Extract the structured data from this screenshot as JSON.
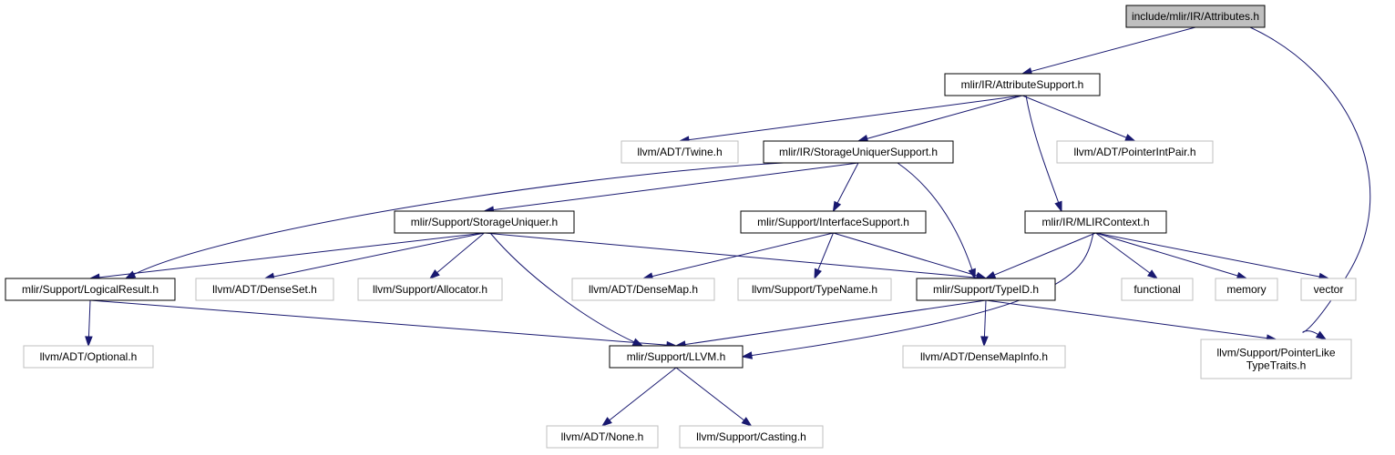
{
  "colors": {
    "edge": "#191970",
    "root_fill": "#bfbfbf",
    "internal_border": "#000000",
    "external_border": "#bfbfbf"
  },
  "nodes": {
    "attributes": {
      "label": "include/mlir/IR/Attributes.h",
      "kind": "root"
    },
    "attribute_support": {
      "label": "mlir/IR/AttributeSupport.h",
      "kind": "internal"
    },
    "twine": {
      "label": "llvm/ADT/Twine.h",
      "kind": "external"
    },
    "storage_uniquer_support": {
      "label": "mlir/IR/StorageUniquerSupport.h",
      "kind": "internal"
    },
    "pointer_int_pair": {
      "label": "llvm/ADT/PointerIntPair.h",
      "kind": "external"
    },
    "storage_uniquer": {
      "label": "mlir/Support/StorageUniquer.h",
      "kind": "internal"
    },
    "interface_support": {
      "label": "mlir/Support/InterfaceSupport.h",
      "kind": "internal"
    },
    "mlir_context": {
      "label": "mlir/IR/MLIRContext.h",
      "kind": "internal"
    },
    "logical_result": {
      "label": "mlir/Support/LogicalResult.h",
      "kind": "internal"
    },
    "dense_set": {
      "label": "llvm/ADT/DenseSet.h",
      "kind": "external"
    },
    "allocator": {
      "label": "llvm/Support/Allocator.h",
      "kind": "external"
    },
    "dense_map": {
      "label": "llvm/ADT/DenseMap.h",
      "kind": "external"
    },
    "type_name": {
      "label": "llvm/Support/TypeName.h",
      "kind": "external"
    },
    "type_id": {
      "label": "mlir/Support/TypeID.h",
      "kind": "internal"
    },
    "functional": {
      "label": "functional",
      "kind": "external"
    },
    "memory": {
      "label": "memory",
      "kind": "external"
    },
    "vector": {
      "label": "vector",
      "kind": "external"
    },
    "optional": {
      "label": "llvm/ADT/Optional.h",
      "kind": "external"
    },
    "llvm_h": {
      "label": "mlir/Support/LLVM.h",
      "kind": "internal"
    },
    "dense_map_info": {
      "label": "llvm/ADT/DenseMapInfo.h",
      "kind": "external"
    },
    "pointer_like_type_traits": {
      "label": "llvm/Support/PointerLike\nTypeTraits.h",
      "label_lines": [
        "llvm/Support/PointerLike",
        "TypeTraits.h"
      ],
      "kind": "external"
    },
    "none": {
      "label": "llvm/ADT/None.h",
      "kind": "external"
    },
    "casting": {
      "label": "llvm/Support/Casting.h",
      "kind": "external"
    }
  },
  "edges": [
    {
      "from": "attributes",
      "to": "attribute_support"
    },
    {
      "from": "attributes",
      "to": "pointer_like_type_traits"
    },
    {
      "from": "attribute_support",
      "to": "twine"
    },
    {
      "from": "attribute_support",
      "to": "storage_uniquer_support"
    },
    {
      "from": "attribute_support",
      "to": "pointer_int_pair"
    },
    {
      "from": "attribute_support",
      "to": "mlir_context"
    },
    {
      "from": "storage_uniquer_support",
      "to": "logical_result"
    },
    {
      "from": "storage_uniquer_support",
      "to": "storage_uniquer"
    },
    {
      "from": "storage_uniquer_support",
      "to": "interface_support"
    },
    {
      "from": "storage_uniquer_support",
      "to": "type_id"
    },
    {
      "from": "storage_uniquer",
      "to": "logical_result"
    },
    {
      "from": "storage_uniquer",
      "to": "dense_set"
    },
    {
      "from": "storage_uniquer",
      "to": "allocator"
    },
    {
      "from": "storage_uniquer",
      "to": "llvm_h"
    },
    {
      "from": "storage_uniquer",
      "to": "type_id"
    },
    {
      "from": "interface_support",
      "to": "dense_map"
    },
    {
      "from": "interface_support",
      "to": "type_name"
    },
    {
      "from": "interface_support",
      "to": "type_id"
    },
    {
      "from": "mlir_context",
      "to": "type_id"
    },
    {
      "from": "mlir_context",
      "to": "llvm_h"
    },
    {
      "from": "mlir_context",
      "to": "functional"
    },
    {
      "from": "mlir_context",
      "to": "memory"
    },
    {
      "from": "mlir_context",
      "to": "vector"
    },
    {
      "from": "logical_result",
      "to": "optional"
    },
    {
      "from": "logical_result",
      "to": "llvm_h"
    },
    {
      "from": "type_id",
      "to": "llvm_h"
    },
    {
      "from": "type_id",
      "to": "dense_map_info"
    },
    {
      "from": "type_id",
      "to": "pointer_like_type_traits"
    },
    {
      "from": "llvm_h",
      "to": "none"
    },
    {
      "from": "llvm_h",
      "to": "casting"
    }
  ]
}
